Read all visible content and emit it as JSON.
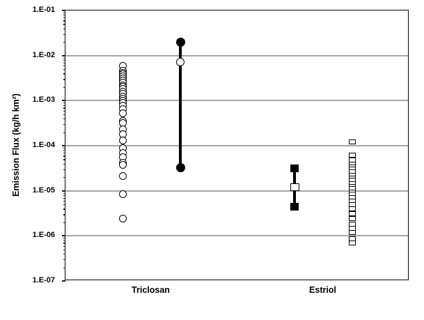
{
  "chart_data": {
    "type": "scatter",
    "title": "",
    "xlabel": "",
    "ylabel": "Emission Flux (kg/h km²)",
    "y_scale": "log",
    "ylim": [
      1e-07,
      0.1
    ],
    "yticks": [
      "1.E-01",
      "1.E-02",
      "1.E-03",
      "1.E-04",
      "1.E-05",
      "1.E-06",
      "1.E-07"
    ],
    "ytick_exponents": [
      -1,
      -2,
      -3,
      -4,
      -5,
      -6,
      -7
    ],
    "grid": "horizontal-major",
    "grid_color": "#a6a6a6",
    "marker_color": "#000000",
    "legend": "none",
    "categories": [
      "Triclosan",
      "Estriol"
    ],
    "series": [
      {
        "name": "triclosan-measurements",
        "category_index": 0,
        "column": "left",
        "marker": "open-circle",
        "values": [
          0.006,
          0.0046,
          0.0042,
          0.0038,
          0.0034,
          0.0031,
          0.0028,
          0.0025,
          0.0022,
          0.002,
          0.0018,
          0.0016,
          0.0014,
          0.00125,
          0.0011,
          0.001,
          0.0009,
          0.00078,
          0.00066,
          0.00052,
          0.00036,
          0.00032,
          0.00023,
          0.00018,
          0.00013,
          8.7e-05,
          7e-05,
          5.6e-05,
          4.2e-05,
          3.8e-05,
          2.1e-05,
          8.3e-06,
          2.4e-06
        ]
      },
      {
        "name": "triclosan-range",
        "category_index": 0,
        "column": "right",
        "marker": "filled-circle",
        "mid_marker": "mid-open-circle",
        "max": 0.02,
        "mid": 0.0072,
        "min": 3.3e-05
      },
      {
        "name": "estriol-range",
        "category_index": 1,
        "column": "left",
        "marker": "filled-square",
        "mid_marker": "mid-open-square",
        "max": 3.1e-05,
        "mid": 1.2e-05,
        "min": 4.4e-06
      },
      {
        "name": "estriol-measurements",
        "category_index": 1,
        "column": "right",
        "marker": "open-square",
        "values": [
          0.00012,
          6.1e-05,
          4.8e-05,
          3.9e-05,
          3.4e-05,
          3e-05,
          2.6e-05,
          2.2e-05,
          1.9e-05,
          1.7e-05,
          1.45e-05,
          1.25e-05,
          1.1e-05,
          9.4e-06,
          8.3e-06,
          7.1e-06,
          5.9e-06,
          5e-06,
          4e-06,
          3.1e-06,
          2.4e-06,
          1.8e-06,
          1.45e-06,
          1.2e-06,
          8.7e-07,
          7e-07
        ]
      }
    ]
  }
}
